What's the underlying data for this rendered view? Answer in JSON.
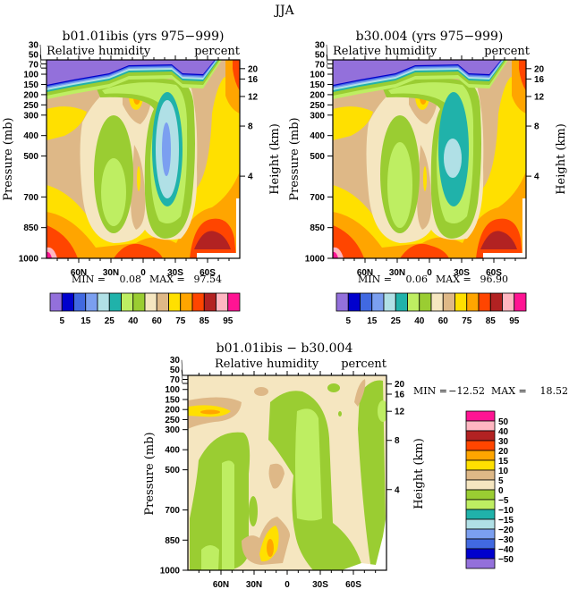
{
  "figure_title": "JJA",
  "colors": {
    "purple": "#9370DB",
    "navy": "#0000CD",
    "royal": "#4169E1",
    "cornflower": "#7B9FF0",
    "powder": "#B0E0E6",
    "teal": "#20B2AA",
    "lightgreen": "#BEEE62",
    "olive": "#9ACD32",
    "wheat": "#F5E6C0",
    "tan": "#DEB887",
    "gold": "#FFE000",
    "orange": "#FFA500",
    "orangered": "#FF4500",
    "firebrick": "#B22222",
    "pink": "#FFB6C1",
    "deeppink": "#FF1493"
  },
  "chart_data": [
    {
      "type": "heatmap",
      "title": "b01.01ibis (yrs 975−999)",
      "left_label": "Relative humidity",
      "right_label": "percent",
      "xlabel": "",
      "ylabel": "Pressure (mb)",
      "y2label": "Height (km)",
      "x_ticks": [
        "60N",
        "30N",
        "0",
        "30S",
        "60S"
      ],
      "x_tick_values": [
        60,
        30,
        0,
        -30,
        -60
      ],
      "xlim": [
        90,
        -90
      ],
      "y_ticks": [
        30,
        50,
        70,
        100,
        150,
        200,
        250,
        300,
        400,
        500,
        700,
        850,
        1000
      ],
      "ylim": [
        30,
        1000
      ],
      "y2_ticks": [
        20,
        16,
        12,
        8,
        4
      ],
      "min_label": "MIN =",
      "min": "0.08",
      "max_label": "MAX =",
      "max": "97.54",
      "colorbar_labels": [
        "5",
        "15",
        "25",
        "40",
        "60",
        "75",
        "85",
        "95"
      ],
      "colorbar_orientation": "horizontal"
    },
    {
      "type": "heatmap",
      "title": "b30.004 (yrs 975−999)",
      "left_label": "Relative humidity",
      "right_label": "percent",
      "ylabel": "Pressure (mb)",
      "y2label": "Height (km)",
      "x_ticks": [
        "60N",
        "30N",
        "0",
        "30S",
        "60S"
      ],
      "x_tick_values": [
        60,
        30,
        0,
        -30,
        -60
      ],
      "xlim": [
        90,
        -90
      ],
      "y_ticks": [
        30,
        50,
        70,
        100,
        150,
        200,
        250,
        300,
        400,
        500,
        700,
        850,
        1000
      ],
      "ylim": [
        30,
        1000
      ],
      "y2_ticks": [
        20,
        16,
        12,
        8,
        4
      ],
      "min_label": "MIN =",
      "min": "0.06",
      "max_label": "MAX =",
      "max": "96.90",
      "colorbar_labels": [
        "5",
        "15",
        "25",
        "40",
        "60",
        "75",
        "85",
        "95"
      ],
      "colorbar_orientation": "horizontal"
    },
    {
      "type": "heatmap",
      "title": "b01.01ibis − b30.004",
      "left_label": "Relative humidity",
      "right_label": "percent",
      "ylabel": "Pressure (mb)",
      "y2label": "Height (km)",
      "x_ticks": [
        "60N",
        "30N",
        "0",
        "30S",
        "60S"
      ],
      "x_tick_values": [
        60,
        30,
        0,
        -30,
        -60
      ],
      "xlim": [
        90,
        -90
      ],
      "y_ticks": [
        30,
        50,
        70,
        100,
        150,
        200,
        250,
        300,
        400,
        500,
        700,
        850,
        1000
      ],
      "ylim": [
        30,
        1000
      ],
      "y2_ticks": [
        20,
        16,
        12,
        8,
        4
      ],
      "min_label": "MIN =",
      "min": "−12.52",
      "max_label": "MAX =",
      "max": "18.52",
      "colorbar_labels": [
        "50",
        "40",
        "30",
        "20",
        "15",
        "10",
        "5",
        "0",
        "−5",
        "−10",
        "−15",
        "−20",
        "−30",
        "−40",
        "−50"
      ],
      "colorbar_orientation": "vertical"
    }
  ]
}
